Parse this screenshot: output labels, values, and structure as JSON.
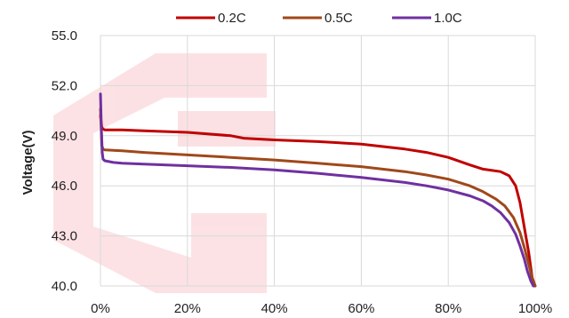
{
  "chart_data": {
    "type": "line",
    "title": "",
    "xlabel": "",
    "ylabel": "Voltage(V)",
    "xlim": [
      0,
      100
    ],
    "ylim": [
      40,
      55
    ],
    "x_ticks": [
      "0%",
      "20%",
      "40%",
      "60%",
      "80%",
      "100%"
    ],
    "x_tick_values": [
      0,
      20,
      40,
      60,
      80,
      100
    ],
    "y_ticks": [
      "40.0",
      "43.0",
      "46.0",
      "49.0",
      "52.0",
      "55.0"
    ],
    "y_tick_values": [
      40,
      43,
      46,
      49,
      52,
      55
    ],
    "grid": true,
    "legend_position": "top",
    "series": [
      {
        "name": "0.2C",
        "color": "#c00000",
        "x": [
          0,
          0.3,
          0.6,
          1,
          5,
          10,
          20,
          30,
          33,
          40,
          50,
          60,
          70,
          75,
          80,
          85,
          88,
          92,
          94,
          95.5,
          96.5,
          97.5,
          98.5,
          99.3,
          100
        ],
        "y": [
          50.2,
          49.5,
          49.4,
          49.35,
          49.35,
          49.3,
          49.2,
          49.0,
          48.85,
          48.75,
          48.65,
          48.5,
          48.2,
          48.0,
          47.7,
          47.25,
          47.0,
          46.85,
          46.6,
          46.0,
          45.0,
          43.5,
          42.0,
          40.5,
          40.0
        ]
      },
      {
        "name": "0.5C",
        "color": "#a0481a",
        "x": [
          0,
          0.3,
          0.6,
          1,
          5,
          10,
          20,
          30,
          40,
          50,
          60,
          70,
          75,
          80,
          85,
          88,
          91,
          93,
          95,
          96.5,
          97.5,
          98.3,
          99,
          99.5,
          100
        ],
        "y": [
          50.6,
          48.4,
          48.2,
          48.15,
          48.1,
          48.0,
          47.85,
          47.7,
          47.55,
          47.35,
          47.15,
          46.85,
          46.65,
          46.4,
          46.0,
          45.65,
          45.2,
          44.8,
          44.1,
          43.2,
          42.3,
          41.5,
          40.8,
          40.3,
          40.0
        ]
      },
      {
        "name": "1.0C",
        "color": "#7030a0",
        "x": [
          0,
          0.2,
          0.4,
          0.6,
          1,
          3,
          5,
          10,
          20,
          30,
          40,
          50,
          60,
          70,
          75,
          80,
          85,
          88,
          90,
          92,
          94,
          95.5,
          96.5,
          97.5,
          98.2,
          99,
          99.6
        ],
        "y": [
          51.5,
          49.5,
          48.0,
          47.6,
          47.5,
          47.4,
          47.35,
          47.3,
          47.2,
          47.1,
          46.95,
          46.75,
          46.5,
          46.2,
          46.0,
          45.75,
          45.4,
          45.1,
          44.8,
          44.4,
          43.8,
          43.1,
          42.4,
          41.6,
          40.9,
          40.3,
          40.0
        ]
      }
    ]
  }
}
